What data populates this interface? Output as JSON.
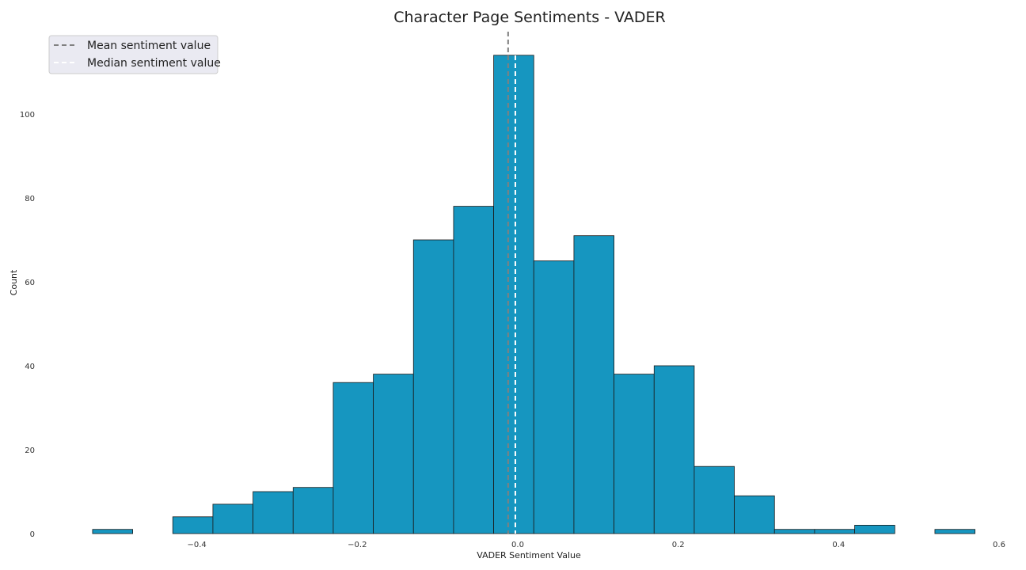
{
  "chart_data": {
    "type": "bar",
    "title": "Character Page Sentiments - VADER",
    "xlabel": "VADER Sentiment Value",
    "ylabel": "Count",
    "xlim": [
      -0.6,
      0.6
    ],
    "ylim": [
      0,
      120
    ],
    "xticks": [
      -0.4,
      -0.2,
      0.0,
      0.2,
      0.4,
      0.6
    ],
    "xtick_labels": [
      "−0.4",
      "−0.2",
      "0.0",
      "0.2",
      "0.4",
      "0.6"
    ],
    "yticks": [
      0,
      20,
      40,
      60,
      80,
      100
    ],
    "ytick_labels": [
      "0",
      "20",
      "40",
      "60",
      "80",
      "100"
    ],
    "bin_edges": [
      -0.53,
      -0.48,
      -0.43,
      -0.38,
      -0.33,
      -0.28,
      -0.23,
      -0.18,
      -0.13,
      -0.08,
      -0.03,
      0.02,
      0.07,
      0.12,
      0.17,
      0.22,
      0.27,
      0.32,
      0.37,
      0.42,
      0.47,
      0.52,
      0.57
    ],
    "counts": [
      1,
      0,
      4,
      7,
      10,
      11,
      36,
      38,
      70,
      78,
      114,
      65,
      71,
      38,
      40,
      16,
      9,
      1,
      1,
      2,
      0,
      1
    ],
    "bar_color": "#1696c0",
    "bar_edge_color": "#1a1a1a",
    "grid": false,
    "lines": [
      {
        "name": "Mean sentiment value",
        "x": -0.012,
        "color": "#808080",
        "style": "dashed"
      },
      {
        "name": "Median sentiment value",
        "x": -0.003,
        "color": "#ffffff",
        "style": "dashed"
      }
    ],
    "legend_placement": "top-left",
    "legend_background": "#eaeaf2"
  }
}
